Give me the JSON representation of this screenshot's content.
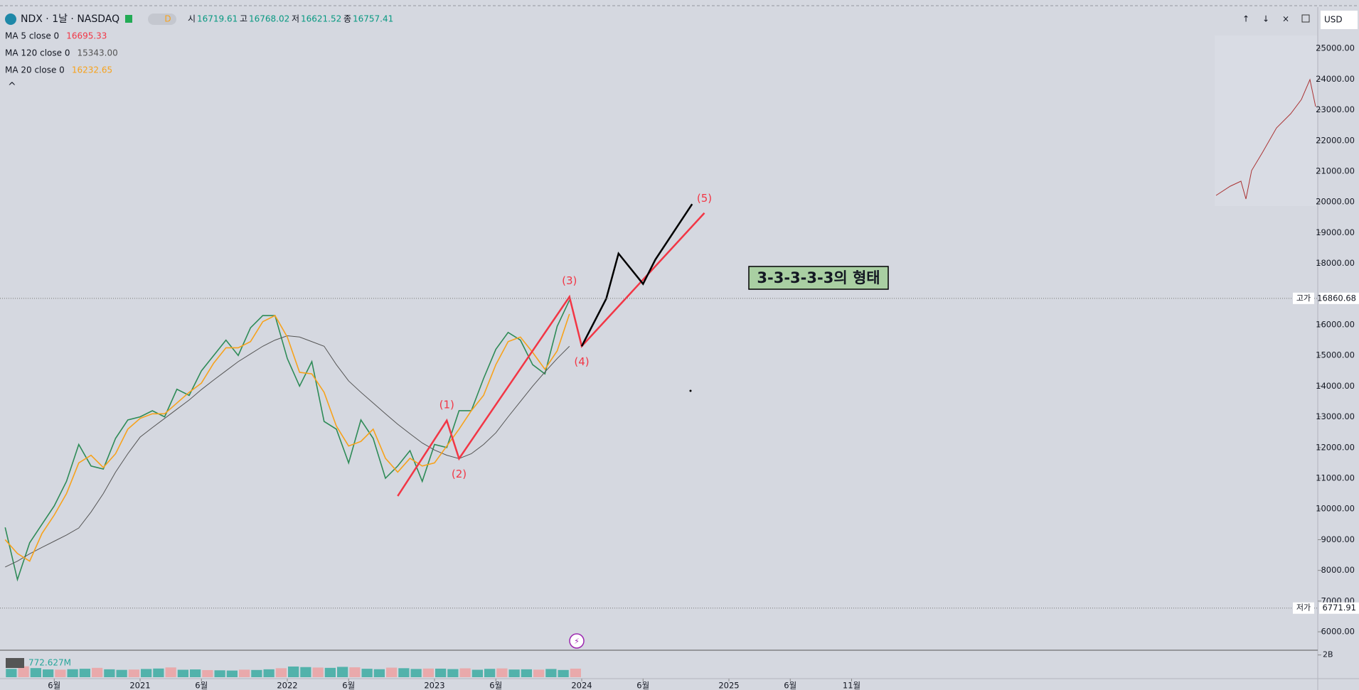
{
  "header": {
    "symbol": "NDX · 1날 · NASDAQ",
    "interval_badge": "D",
    "ohlc": [
      {
        "label": "시",
        "value": 16719.61
      },
      {
        "label": "고",
        "value": 16768.02
      },
      {
        "label": "저",
        "value": 16621.52
      },
      {
        "label": "종",
        "value": 16757.41
      }
    ],
    "currency": "USD"
  },
  "indicators": [
    {
      "label": "MA 5 close 0",
      "value": 16695.33,
      "color": "#f23645"
    },
    {
      "label": "MA 120 close 0",
      "value": {
        "value": 15343,
        "label": "15343.00"
      },
      "color": "#555555"
    },
    {
      "label": "MA 20 close 0",
      "value": 16232.65,
      "color": "#f7a21b"
    }
  ],
  "chart_data": {
    "type": "line",
    "x": [
      "2020-02",
      "2020-03",
      "2020-04",
      "2020-05",
      "2020-06",
      "2020-07",
      "2020-08",
      "2020-09",
      "2020-10",
      "2020-11",
      "2020-12",
      "2021-01",
      "2021-02",
      "2021-03",
      "2021-04",
      "2021-05",
      "2021-06",
      "2021-07",
      "2021-08",
      "2021-09",
      "2021-10",
      "2021-11",
      "2021-12",
      "2022-01",
      "2022-02",
      "2022-03",
      "2022-04",
      "2022-05",
      "2022-06",
      "2022-07",
      "2022-08",
      "2022-09",
      "2022-10",
      "2022-11",
      "2022-12",
      "2023-01",
      "2023-02",
      "2023-03",
      "2023-04",
      "2023-05",
      "2023-06",
      "2023-07",
      "2023-08",
      "2023-09",
      "2023-10",
      "2023-11",
      "2023-12"
    ],
    "series": [
      {
        "color": "#2e8b57",
        "values": [
          9400,
          7700,
          8900,
          9500,
          10100,
          10900,
          12100,
          11400,
          11300,
          12300,
          12900,
          13000,
          13200,
          13000,
          13900,
          13700,
          14500,
          15000,
          15500,
          15000,
          15900,
          16300,
          16300,
          14900,
          14000,
          14800,
          12850,
          12600,
          11500,
          12900,
          12300,
          11000,
          11400,
          11900,
          10900,
          12100,
          12000,
          13200,
          13200,
          14250,
          15200,
          15750,
          15500,
          14700,
          14400,
          15950,
          16800
        ]
      },
      {
        "color": "#555555",
        "values": [
          8110,
          8300,
          8540,
          8750,
          8950,
          9150,
          9380,
          9900,
          10500,
          11200,
          11800,
          12340,
          12650,
          12950,
          13250,
          13550,
          13890,
          14200,
          14500,
          14800,
          15050,
          15300,
          15500,
          15640,
          15600,
          15450,
          15300,
          14700,
          14170,
          13800,
          13450,
          13100,
          12760,
          12450,
          12150,
          11920,
          11750,
          11640,
          11800,
          12100,
          12480,
          13000,
          13500,
          14000,
          14460,
          14900,
          15300
        ]
      },
      {
        "color": "#f7a21b",
        "values": [
          9000,
          8550,
          8300,
          9200,
          9800,
          10500,
          11500,
          11750,
          11350,
          11800,
          12600,
          12950,
          13100,
          13100,
          13450,
          13800,
          14100,
          14750,
          15250,
          15250,
          15450,
          16100,
          16300,
          15600,
          14450,
          14400,
          13800,
          12700,
          12050,
          12200,
          12600,
          11650,
          11200,
          11650,
          11400,
          11500,
          12050,
          12600,
          13200,
          13700,
          14700,
          15450,
          15600,
          15100,
          14550,
          15150,
          16350
        ]
      }
    ],
    "xlim": [
      "2020-02",
      "2029-01"
    ],
    "xticks": [
      {
        "value": "2020-06",
        "label": "6월"
      },
      {
        "value": "2021-01",
        "label": "2021"
      },
      {
        "value": "2021-06",
        "label": "6월"
      },
      {
        "value": "2022-01",
        "label": "2022"
      },
      {
        "value": "2022-06",
        "label": "6월"
      },
      {
        "value": "2023-01",
        "label": "2023"
      },
      {
        "value": "2023-06",
        "label": "6월"
      },
      {
        "value": "2024-01",
        "label": "2024"
      },
      {
        "value": "2024-06",
        "label": "6월"
      },
      {
        "value": "2025-01",
        "label": "2025"
      },
      {
        "value": "2025-06",
        "label": "6월"
      },
      {
        "value": "2025-11",
        "label": "11월"
      }
    ],
    "ylim": [
      5400,
      26230
    ],
    "yticks": [
      {
        "value": 6000,
        "label": "6000.00"
      },
      {
        "value": 7000,
        "label": "7000.00"
      },
      {
        "value": 8000,
        "label": "8000.00"
      },
      {
        "value": 9000,
        "label": "9000.00"
      },
      {
        "value": 10000,
        "label": "10000.00"
      },
      {
        "value": 11000,
        "label": "11000.00"
      },
      {
        "value": 12000,
        "label": "12000.00"
      },
      {
        "value": 13000,
        "label": "13000.00"
      },
      {
        "value": 14000,
        "label": "14000.00"
      },
      {
        "value": 15000,
        "label": "15000.00"
      },
      {
        "value": 16000,
        "label": "16000.00"
      },
      {
        "value": 18000,
        "label": "18000.00"
      },
      {
        "value": 19000,
        "label": "19000.00"
      },
      {
        "value": 20000,
        "label": "20000.00"
      },
      {
        "value": 21000,
        "label": "21000.00"
      },
      {
        "value": 22000,
        "label": "22000.00"
      },
      {
        "value": 23000,
        "label": "23000.00"
      },
      {
        "value": 24000,
        "label": "24000.00"
      },
      {
        "value": 25000,
        "label": "25000.00"
      }
    ],
    "price_lines": [
      {
        "label": "고가",
        "value": 16860.68
      },
      {
        "label": "저가",
        "value": 6771.91
      }
    ],
    "volume": {
      "color": "#26a69a",
      "values": [
        750000000.0,
        980000000.0,
        820000000.0,
        700000000.0,
        680000000.0,
        720000000.0,
        760000000.0,
        840000000.0,
        710000000.0,
        660000000.0,
        690000000.0,
        740000000.0,
        780000000.0,
        880000000.0,
        670000000.0,
        700000000.0,
        640000000.0,
        620000000.0,
        600000000.0,
        680000000.0,
        650000000.0,
        710000000.0,
        810000000.0,
        960000000.0,
        910000000.0,
        870000000.0,
        840000000.0,
        930000000.0,
        890000000.0,
        760000000.0,
        720000000.0,
        860000000.0,
        810000000.0,
        740000000.0,
        780000000.0,
        770000000.0,
        730000000.0,
        800000000.0,
        670000000.0,
        750000000.0,
        790000000.0,
        690000000.0,
        710000000.0,
        680000000.0,
        740000000.0,
        650000000.0,
        772627000
      ],
      "value_label": "772.627M",
      "ylim": [
        0,
        2300000000.0
      ],
      "yticks": [
        {
          "value": 2000000000.0,
          "label": "2B"
        }
      ]
    },
    "waves": [
      {
        "color": "#f23645",
        "x": [
          "2022-10",
          "2023-02",
          "2023-03",
          "2023-12",
          "2024-01",
          "2024-11"
        ],
        "values": [
          10420,
          12880,
          11640,
          16910,
          15300,
          19640
        ],
        "labels": [
          null,
          "(1)",
          "(2)",
          "(3)",
          "(4)",
          "(5)"
        ]
      },
      {
        "color": "#000000",
        "x": [
          "2024-01",
          "2024-03",
          "2024-04",
          "2024-06",
          "2024-07",
          "2024-10"
        ],
        "values": [
          15300,
          16850,
          18320,
          17330,
          18120,
          19930
        ]
      }
    ],
    "annotation": "3-3-3-3-3의 형태"
  }
}
